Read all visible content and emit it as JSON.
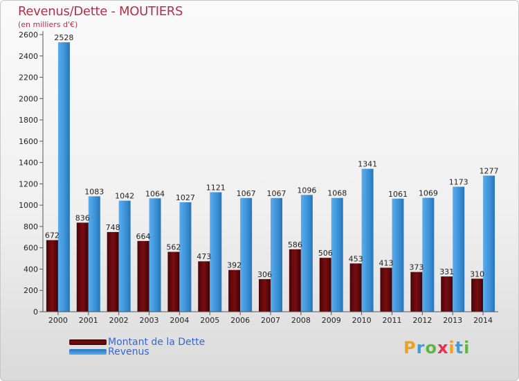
{
  "title": "Revenus/Dette - MOUTIERS",
  "subtitle": "(en milliers d'€)",
  "colors": {
    "dette": "#7a0d10",
    "revenus": "#3d93d8",
    "title": "#b0304a",
    "legend_text": "#3366dd"
  },
  "logo": {
    "letters": [
      "P",
      "r",
      "o",
      "x",
      "i",
      "t",
      "i"
    ],
    "colors": [
      "#f0a020",
      "#3aa0d8",
      "#5bb83c",
      "#e83050",
      "#f0a020",
      "#3aa0d8",
      "#5bb83c"
    ]
  },
  "chart_data": {
    "type": "bar",
    "categories": [
      "2000",
      "2001",
      "2002",
      "2003",
      "2004",
      "2005",
      "2006",
      "2007",
      "2008",
      "2009",
      "2010",
      "2011",
      "2012",
      "2013",
      "2014"
    ],
    "series": [
      {
        "name": "Montant de la Dette",
        "values": [
          672,
          836,
          748,
          664,
          562,
          473,
          392,
          306,
          586,
          506,
          453,
          413,
          373,
          331,
          310
        ]
      },
      {
        "name": "Revenus",
        "values": [
          2528,
          1083,
          1042,
          1064,
          1027,
          1121,
          1067,
          1067,
          1096,
          1068,
          1341,
          1061,
          1069,
          1173,
          1277
        ]
      }
    ],
    "ylim": [
      0,
      2600
    ],
    "yticks": [
      0,
      200,
      400,
      600,
      800,
      1000,
      1200,
      1400,
      1600,
      1800,
      2000,
      2200,
      2400,
      2600
    ],
    "grid": false,
    "legend_position": "bottom-left"
  }
}
